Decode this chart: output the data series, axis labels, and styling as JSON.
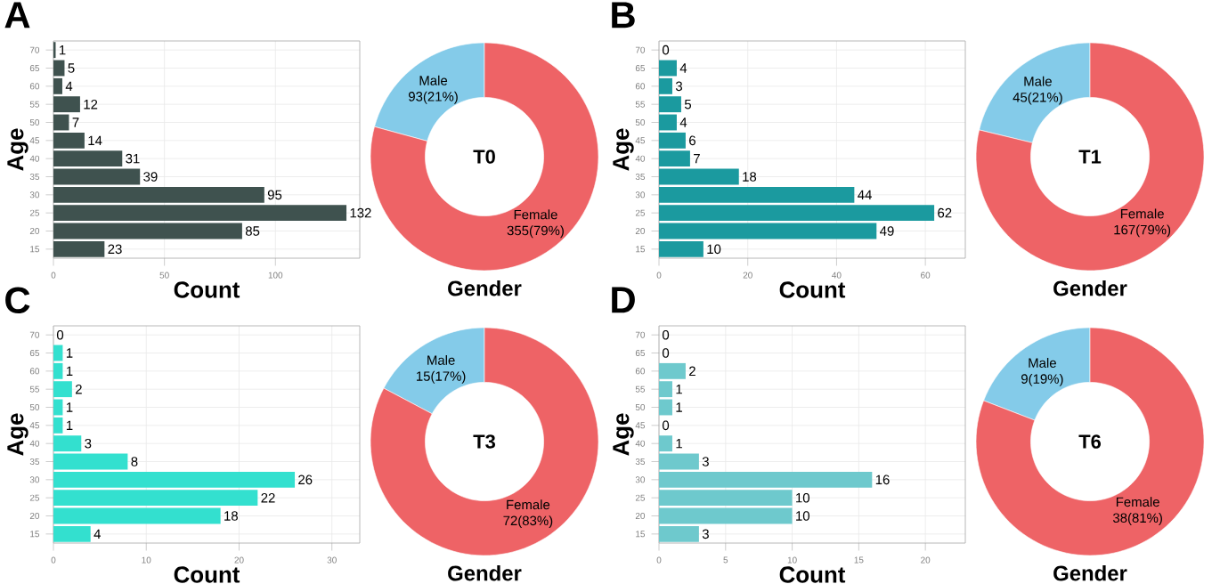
{
  "chart_data": [
    {
      "type": "bar",
      "orientation": "horizontal",
      "annotations": [
        "A"
      ],
      "xlabel": "Count",
      "ylabel": "Age",
      "categories": [
        "70",
        "65",
        "60",
        "55",
        "50",
        "45",
        "40",
        "35",
        "30",
        "25",
        "20",
        "15"
      ],
      "values": [
        1,
        5,
        4,
        12,
        7,
        14,
        31,
        39,
        95,
        132,
        85,
        23
      ],
      "color": "#3f524f",
      "xlim": [
        0,
        138
      ],
      "xticks": [
        0,
        50,
        100
      ],
      "data_labels": true,
      "grid": true
    },
    {
      "type": "donut",
      "annotations": [
        "T0"
      ],
      "xlabel": "Gender",
      "categories": [
        "Male",
        "Female"
      ],
      "values": [
        93,
        355
      ],
      "value_labels": [
        "93(21%)",
        "355(79%)"
      ],
      "colors": [
        "#84cbe9",
        "#ee6366"
      ]
    },
    {
      "type": "bar",
      "orientation": "horizontal",
      "annotations": [
        "B"
      ],
      "xlabel": "Count",
      "ylabel": "Age",
      "categories": [
        "70",
        "65",
        "60",
        "55",
        "50",
        "45",
        "40",
        "35",
        "30",
        "25",
        "20",
        "15"
      ],
      "values": [
        0,
        4,
        3,
        5,
        4,
        6,
        7,
        18,
        44,
        62,
        49,
        10
      ],
      "color": "#1b9a9f",
      "xlim": [
        0,
        69
      ],
      "xticks": [
        0,
        20,
        40,
        60
      ],
      "data_labels": true,
      "grid": true
    },
    {
      "type": "donut",
      "annotations": [
        "T1"
      ],
      "xlabel": "Gender",
      "categories": [
        "Male",
        "Female"
      ],
      "values": [
        45,
        167
      ],
      "value_labels": [
        "45(21%)",
        "167(79%)"
      ],
      "colors": [
        "#84cbe9",
        "#ee6366"
      ]
    },
    {
      "type": "bar",
      "orientation": "horizontal",
      "annotations": [
        "C"
      ],
      "xlabel": "Count",
      "ylabel": "Age",
      "categories": [
        "70",
        "65",
        "60",
        "55",
        "50",
        "45",
        "40",
        "35",
        "30",
        "25",
        "20",
        "15"
      ],
      "values": [
        0,
        1,
        1,
        2,
        1,
        1,
        3,
        8,
        26,
        22,
        18,
        4
      ],
      "color": "#33e0cf",
      "xlim": [
        0,
        33
      ],
      "xticks": [
        0,
        10,
        20,
        30
      ],
      "data_labels": true,
      "grid": true
    },
    {
      "type": "donut",
      "annotations": [
        "T3"
      ],
      "xlabel": "Gender",
      "categories": [
        "Male",
        "Female"
      ],
      "values": [
        15,
        72
      ],
      "value_labels": [
        "15(17%)",
        "72(83%)"
      ],
      "colors": [
        "#84cbe9",
        "#ee6366"
      ]
    },
    {
      "type": "bar",
      "orientation": "horizontal",
      "annotations": [
        "D"
      ],
      "xlabel": "Count",
      "ylabel": "Age",
      "categories": [
        "70",
        "65",
        "60",
        "55",
        "50",
        "45",
        "40",
        "35",
        "30",
        "25",
        "20",
        "15"
      ],
      "values": [
        0,
        0,
        2,
        1,
        1,
        0,
        1,
        3,
        16,
        10,
        10,
        3
      ],
      "color": "#6ec9cd",
      "xlim": [
        0,
        23
      ],
      "xticks": [
        0,
        5,
        10,
        15,
        20
      ],
      "data_labels": true,
      "grid": true
    },
    {
      "type": "donut",
      "annotations": [
        "T6"
      ],
      "xlabel": "Gender",
      "categories": [
        "Male",
        "Female"
      ],
      "values": [
        9,
        38
      ],
      "value_labels": [
        "9(19%)",
        "38(81%)"
      ],
      "colors": [
        "#84cbe9",
        "#ee6366"
      ]
    }
  ]
}
